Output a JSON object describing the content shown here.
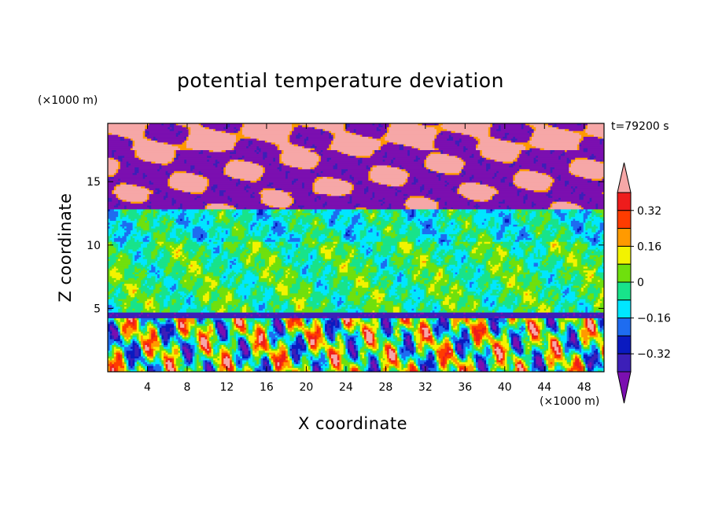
{
  "chart_data": {
    "type": "heatmap",
    "title": "potential temperature deviation",
    "xlabel": "X coordinate",
    "ylabel": "Z coordinate",
    "x_units": "(×1000 m)",
    "y_units": "(×1000 m)",
    "time_label": "t=79200 s",
    "xlim": [
      0,
      50
    ],
    "ylim": [
      0,
      19.6
    ],
    "x_ticks": [
      4,
      8,
      12,
      16,
      20,
      24,
      28,
      32,
      36,
      40,
      44,
      48
    ],
    "y_ticks": [
      5,
      10,
      15
    ],
    "colorbar": {
      "levels": [
        -0.4,
        -0.32,
        -0.24,
        -0.16,
        -0.08,
        0,
        0.08,
        0.16,
        0.24,
        0.32,
        0.4
      ],
      "tick_labels": [
        "0.32",
        "0.16",
        "0",
        "−0.16",
        "−0.32"
      ],
      "tick_values": [
        0.32,
        0.16,
        0,
        -0.16,
        -0.32
      ],
      "colors": [
        "#7b0fb0",
        "#3c1fb8",
        "#0a1ac0",
        "#1e6cf0",
        "#00e6ff",
        "#18e38a",
        "#6fe00d",
        "#f3f300",
        "#ff9a00",
        "#ff3c00",
        "#ee1c1c",
        "#f6a7a7"
      ],
      "extend": "both"
    }
  }
}
